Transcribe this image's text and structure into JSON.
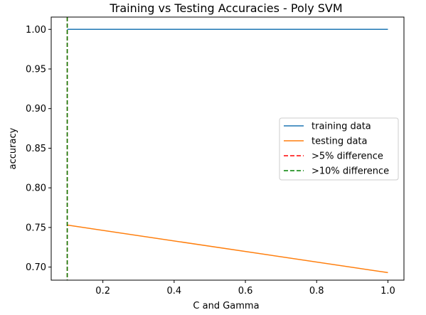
{
  "chart_data": {
    "type": "line",
    "title": "Training vs Testing Accuracies - Poly SVM",
    "xlabel": "C and Gamma",
    "ylabel": "accuracy",
    "xlim": [
      0.055,
      1.045
    ],
    "ylim": [
      0.6835,
      1.0155
    ],
    "x_ticks": [
      0.2,
      0.4,
      0.6,
      0.8,
      1.0
    ],
    "x_tick_labels": [
      "0.2",
      "0.4",
      "0.6",
      "0.8",
      "1.0"
    ],
    "y_ticks": [
      0.7,
      0.75,
      0.8,
      0.85,
      0.9,
      0.95,
      1.0
    ],
    "y_tick_labels": [
      "0.70",
      "0.75",
      "0.80",
      "0.85",
      "0.90",
      "0.95",
      "1.00"
    ],
    "grid": false,
    "legend_position": "center-right",
    "series": [
      {
        "name": "training data",
        "color": "#1f77b4",
        "style": "solid",
        "x": [
          0.1,
          1.0
        ],
        "y": [
          1.0,
          1.0
        ]
      },
      {
        "name": "testing data",
        "color": "#ff7f0e",
        "style": "solid",
        "x": [
          0.1,
          1.0
        ],
        "y": [
          0.753,
          0.693
        ]
      }
    ],
    "vlines": [
      {
        "name": ">5% difference",
        "color": "#ff0000",
        "style": "dashed",
        "x": 0.1
      },
      {
        "name": ">10% difference",
        "color": "#008000",
        "style": "dashed",
        "x": 0.1
      }
    ]
  }
}
